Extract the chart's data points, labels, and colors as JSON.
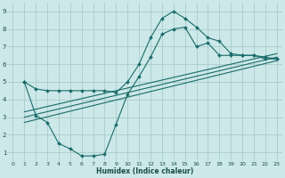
{
  "xlabel": "Humidex (Indice chaleur)",
  "background_color": "#cce8e8",
  "grid_color": "#aacccc",
  "line_color": "#1a6b6b",
  "xlim": [
    -0.5,
    23.5
  ],
  "ylim": [
    0.5,
    9.5
  ],
  "xticks": [
    0,
    1,
    2,
    3,
    4,
    5,
    6,
    7,
    8,
    9,
    10,
    11,
    12,
    13,
    14,
    15,
    16,
    17,
    18,
    19,
    20,
    21,
    22,
    23
  ],
  "yticks": [
    1,
    2,
    3,
    4,
    5,
    6,
    7,
    8,
    9
  ],
  "series1_x": [
    1,
    2,
    3,
    4,
    5,
    6,
    7,
    8,
    9,
    10,
    11,
    12,
    13,
    14,
    15,
    16,
    17,
    18,
    19,
    20,
    21,
    22,
    23
  ],
  "series1_y": [
    5.0,
    4.6,
    4.5,
    4.5,
    4.5,
    4.5,
    4.5,
    4.5,
    4.4,
    5.0,
    6.0,
    7.5,
    8.6,
    9.0,
    8.6,
    8.1,
    7.5,
    7.3,
    6.6,
    6.5,
    6.5,
    6.4,
    6.3
  ],
  "series2_x": [
    1,
    2,
    3,
    4,
    5,
    6,
    7,
    8,
    9,
    10,
    11,
    12,
    13,
    14,
    15,
    16,
    17,
    18,
    19,
    20,
    21,
    22,
    23
  ],
  "series2_y": [
    5.0,
    3.1,
    2.7,
    1.5,
    1.2,
    0.8,
    0.8,
    0.9,
    2.6,
    4.3,
    5.3,
    6.4,
    7.7,
    8.0,
    8.1,
    7.0,
    7.2,
    6.5,
    6.5,
    6.5,
    6.5,
    6.3,
    6.3
  ],
  "reg_lines": [
    {
      "x": [
        1,
        23
      ],
      "y": [
        2.7,
        6.2
      ]
    },
    {
      "x": [
        1,
        23
      ],
      "y": [
        3.0,
        6.4
      ]
    },
    {
      "x": [
        1,
        23
      ],
      "y": [
        3.3,
        6.6
      ]
    }
  ]
}
